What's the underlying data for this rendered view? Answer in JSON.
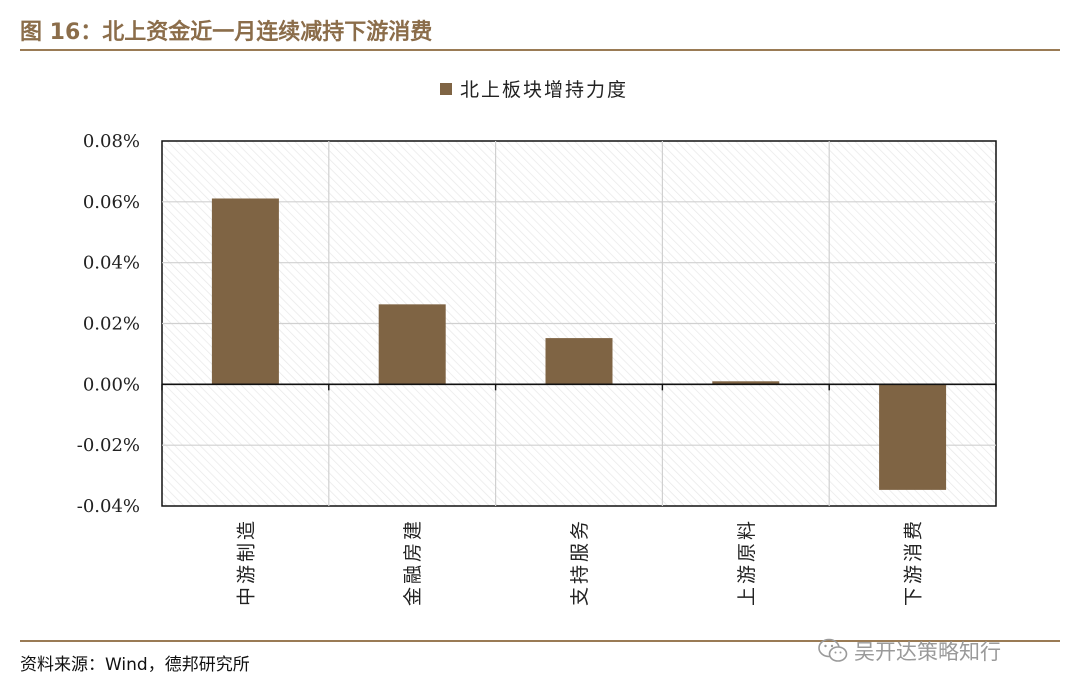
{
  "figure_title": "图 16：北上资金近一月连续减持下游消费",
  "source": "资料来源：Wind，德邦研究所",
  "watermark": {
    "icon": "wechat-icon",
    "text": "吴开达策略知行"
  },
  "colors": {
    "bar": "#7F6444",
    "accent": "#9A7B55",
    "grid": "#d0d0d0",
    "hatch": "#e6e6e6"
  },
  "chart_data": {
    "type": "bar",
    "title": "",
    "xlabel": "",
    "ylabel": "",
    "categories": [
      "中游制造",
      "金融房建",
      "支持服务",
      "上游原料",
      "下游消费"
    ],
    "series": [
      {
        "name": "北上板块增持力度",
        "values": [
          0.0611,
          0.0263,
          0.0152,
          0.001,
          -0.0347
        ]
      }
    ],
    "ylim": [
      -0.04,
      0.08
    ],
    "yticks": [
      "0.08%",
      "0.06%",
      "0.04%",
      "0.02%",
      "0.00%",
      "-0.02%",
      "-0.04%"
    ],
    "ytick_values": [
      0.08,
      0.06,
      0.04,
      0.02,
      0.0,
      -0.02,
      -0.04
    ],
    "unit": "%",
    "grid": true,
    "legend_position": "top-center",
    "category_label_orientation": "vertical"
  }
}
